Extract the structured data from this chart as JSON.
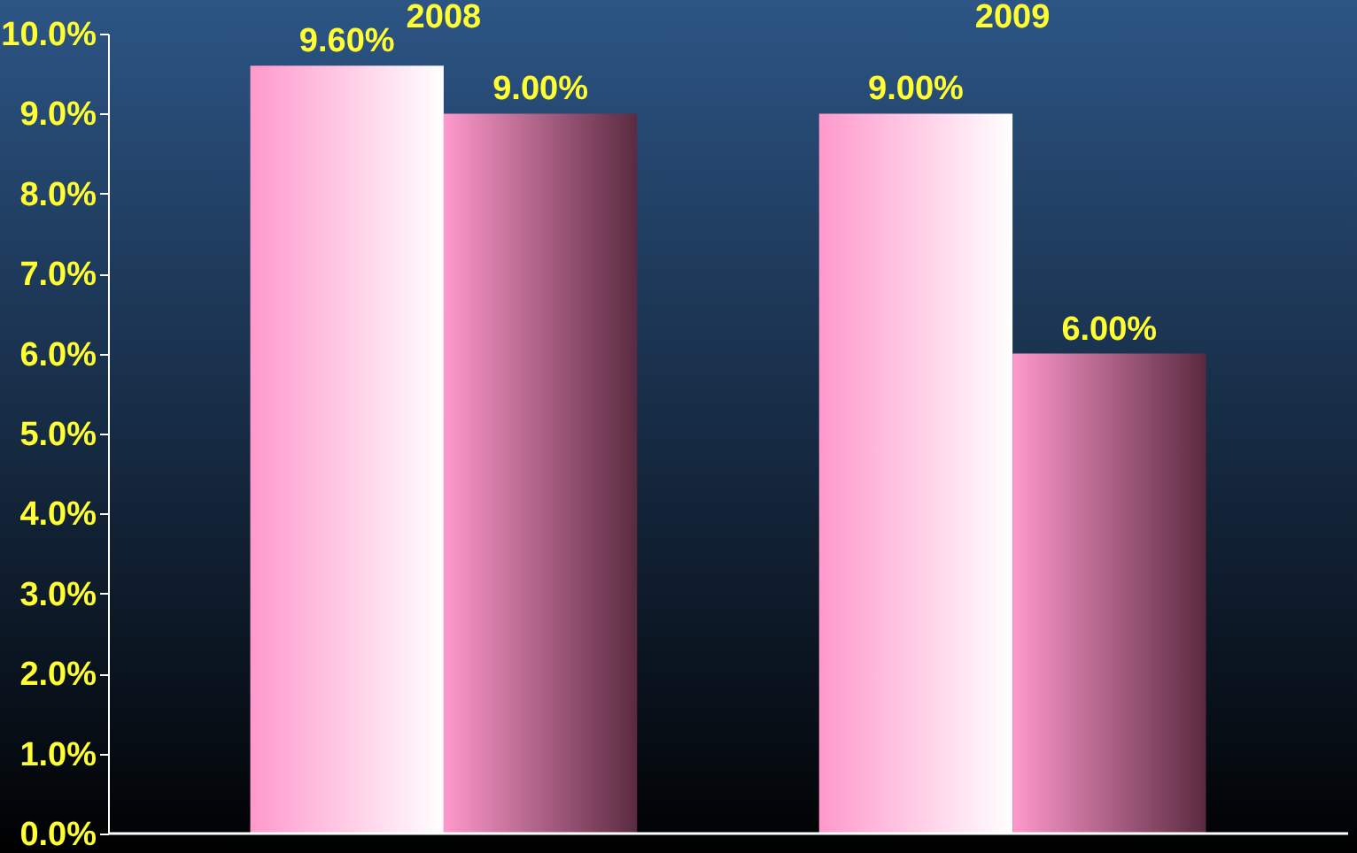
{
  "chart_data": {
    "type": "bar",
    "categories": [
      "2008",
      "2009"
    ],
    "series": [
      {
        "color": "#ff99cc",
        "values": [
          9.6,
          9.0
        ],
        "value_labels": [
          "9.60%",
          "9.00%"
        ]
      },
      {
        "color": "#ff99cc",
        "values": [
          9.0,
          6.0
        ],
        "value_labels": [
          "9.00%",
          "6.00%"
        ]
      }
    ],
    "ylim": [
      0,
      10
    ],
    "yticks": [
      {
        "value": 0,
        "label": "0.0%"
      },
      {
        "value": 1,
        "label": "1.0%"
      },
      {
        "value": 2,
        "label": "2.0%"
      },
      {
        "value": 3,
        "label": "3.0%"
      },
      {
        "value": 4,
        "label": "4.0%"
      },
      {
        "value": 5,
        "label": "5.0%"
      },
      {
        "value": 6,
        "label": "6.0%"
      },
      {
        "value": 7,
        "label": "7.0%"
      },
      {
        "value": 8,
        "label": "8.0%"
      },
      {
        "value": 9,
        "label": "9.0%"
      },
      {
        "value": 10,
        "label": "10.0%"
      }
    ],
    "grid": false
  }
}
